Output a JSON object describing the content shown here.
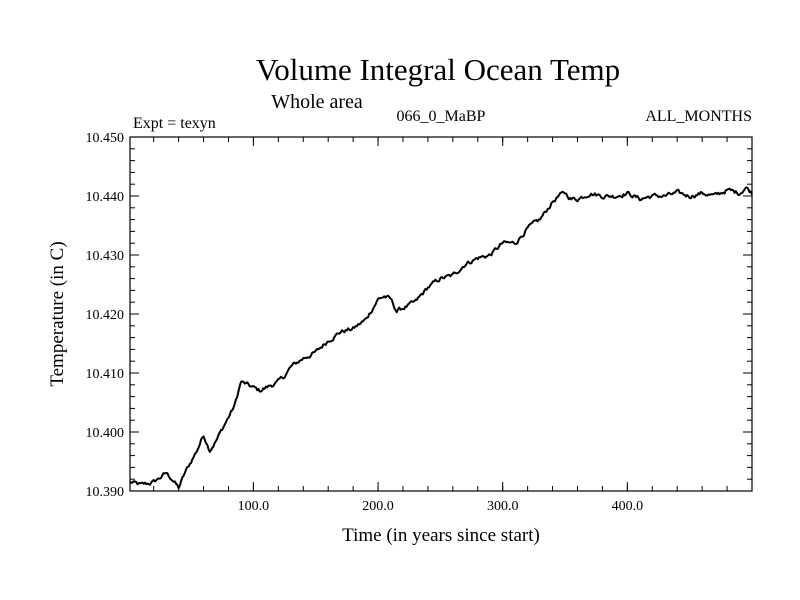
{
  "chart_data": {
    "type": "line",
    "title": "Volume Integral Ocean Temp",
    "subtitle": "Whole area",
    "header_left": "Expt = texyn",
    "header_center": "066_0_MaBP",
    "header_right": "ALL_MONTHS",
    "xlabel": "Time (in years since start)",
    "ylabel": "Temperature (in C)",
    "xlim": [
      1,
      500
    ],
    "ylim": [
      10.39,
      10.45
    ],
    "x_ticks": [
      100,
      200,
      300,
      400
    ],
    "x_tick_labels": [
      "100.0",
      "200.0",
      "300.0",
      "400.0"
    ],
    "y_ticks": [
      10.39,
      10.4,
      10.41,
      10.42,
      10.43,
      10.44,
      10.45
    ],
    "y_tick_labels": [
      "10.390",
      "10.400",
      "10.410",
      "10.420",
      "10.430",
      "10.440",
      "10.450"
    ],
    "grid": false,
    "series": [
      {
        "x": [
          1,
          10,
          20,
          30,
          35,
          40,
          45,
          50,
          55,
          60,
          65,
          70,
          75,
          80,
          85,
          90,
          95,
          100,
          105,
          110,
          115,
          120,
          125,
          130,
          140,
          150,
          160,
          170,
          180,
          190,
          200,
          205,
          210,
          215,
          220,
          225,
          230,
          240,
          250,
          260,
          270,
          280,
          290,
          300,
          310,
          320,
          330,
          340,
          345,
          350,
          355,
          360,
          370,
          380,
          390,
          400,
          410,
          420,
          430,
          440,
          450,
          460,
          470,
          480,
          490,
          495,
          500
        ],
        "y": [
          10.3915,
          10.391,
          10.3915,
          10.393,
          10.392,
          10.3905,
          10.393,
          10.395,
          10.397,
          10.3995,
          10.397,
          10.3985,
          10.4005,
          10.4025,
          10.4045,
          10.4085,
          10.408,
          10.4075,
          10.407,
          10.4075,
          10.408,
          10.4085,
          10.4095,
          10.411,
          10.4125,
          10.4135,
          10.4155,
          10.417,
          10.4175,
          10.419,
          10.4225,
          10.423,
          10.4225,
          10.4205,
          10.421,
          10.4215,
          10.422,
          10.4245,
          10.426,
          10.4265,
          10.4285,
          10.4295,
          10.43,
          10.432,
          10.432,
          10.4345,
          10.436,
          10.439,
          10.44,
          10.4405,
          10.4395,
          10.4395,
          10.4405,
          10.44,
          10.44,
          10.4405,
          10.4395,
          10.44,
          10.44,
          10.4405,
          10.44,
          10.4405,
          10.44,
          10.441,
          10.4405,
          10.4415,
          10.4405
        ]
      }
    ]
  }
}
